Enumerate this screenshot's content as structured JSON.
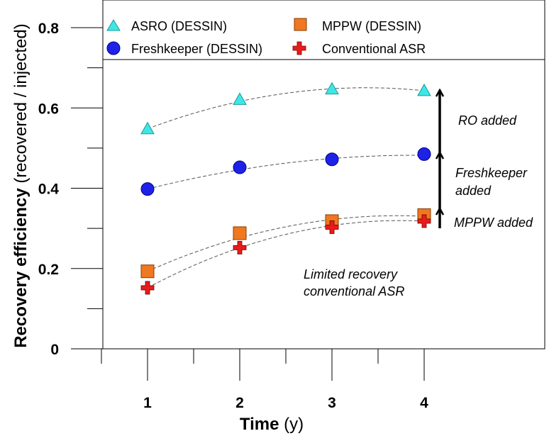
{
  "chart_data": {
    "type": "scatter",
    "xlabel_bold": "Time",
    "xlabel_unit": "(y)",
    "ylabel_bold": "Recovery efficiency",
    "ylabel_unit": "(recovered / injected)",
    "xlim": [
      0.5,
      4.5
    ],
    "ylim": [
      0,
      0.85
    ],
    "x_ticks": [
      1,
      2,
      3,
      4
    ],
    "x_tick_labels": [
      "1",
      "2",
      "3",
      "4"
    ],
    "y_ticks": [
      0,
      0.2,
      0.4,
      0.6,
      0.8
    ],
    "y_tick_labels": [
      "0",
      "0.2",
      "0.4",
      "0.6",
      "0.8"
    ],
    "grid": false,
    "legend_position": "top",
    "series": [
      {
        "name": "ASRO (DESSIN)",
        "marker": "triangle",
        "color": "#40E6E6",
        "x": [
          1,
          2,
          3,
          4
        ],
        "y": [
          0.548,
          0.621,
          0.647,
          0.643
        ],
        "fit": [
          0.548,
          0.621,
          0.652,
          0.643
        ]
      },
      {
        "name": "MPPW (DESSIN)",
        "marker": "square",
        "color": "#F07820",
        "x": [
          1,
          2,
          3,
          4
        ],
        "y": [
          0.193,
          0.288,
          0.318,
          0.333
        ],
        "fit": [
          0.193,
          0.283,
          0.325,
          0.33
        ]
      },
      {
        "name": "Freshkeeper (DESSIN)",
        "marker": "circle",
        "color": "#1E22E6",
        "x": [
          1,
          2,
          3,
          4
        ],
        "y": [
          0.398,
          0.452,
          0.472,
          0.485
        ],
        "fit": [
          0.398,
          0.45,
          0.475,
          0.482
        ]
      },
      {
        "name": "Conventional ASR",
        "marker": "cross",
        "color": "#E81C1C",
        "x": [
          1,
          2,
          3,
          4
        ],
        "y": [
          0.152,
          0.252,
          0.303,
          0.318
        ],
        "fit": [
          0.152,
          0.26,
          0.31,
          0.318
        ]
      }
    ],
    "annotations": {
      "ro_added": "RO added",
      "freshkeeper_added_line1": "Freshkeeper",
      "freshkeeper_added_line2": "added",
      "mppw_added": "MPPW added",
      "limited_line1": "Limited recovery",
      "limited_line2": "conventional ASR"
    }
  }
}
